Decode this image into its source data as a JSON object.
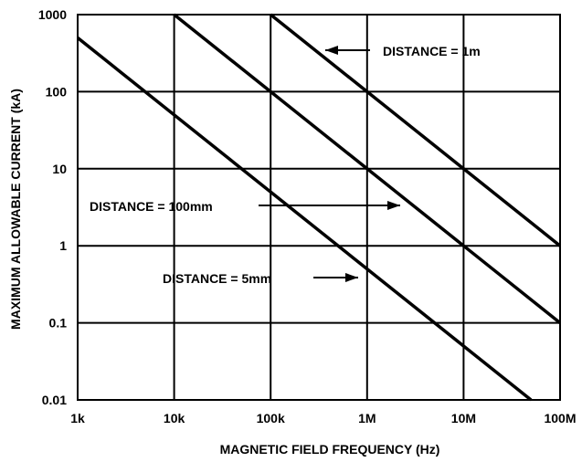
{
  "chart_data": {
    "type": "line",
    "title": "",
    "xlabel": "MAGNETIC FIELD FREQUENCY (Hz)",
    "ylabel": "MAXIMUM ALLOWABLE CURRENT (kA)",
    "xscale": "log",
    "yscale": "log",
    "xlim": [
      1000,
      100000000
    ],
    "ylim": [
      0.01,
      1000
    ],
    "grid": true,
    "x_ticks": [
      {
        "value": 1000,
        "label": "1k"
      },
      {
        "value": 10000,
        "label": "10k"
      },
      {
        "value": 100000,
        "label": "100k"
      },
      {
        "value": 1000000,
        "label": "1M"
      },
      {
        "value": 10000000,
        "label": "10M"
      },
      {
        "value": 100000000,
        "label": "100M"
      }
    ],
    "y_ticks": [
      {
        "value": 0.01,
        "label": "0.01"
      },
      {
        "value": 0.1,
        "label": "0.1"
      },
      {
        "value": 1,
        "label": "1"
      },
      {
        "value": 10,
        "label": "10"
      },
      {
        "value": 100,
        "label": "100"
      },
      {
        "value": 1000,
        "label": "1000"
      }
    ],
    "series": [
      {
        "name": "DISTANCE = 1m",
        "x": [
          100000,
          100000000
        ],
        "y": [
          1000,
          1
        ]
      },
      {
        "name": "DISTANCE = 100mm",
        "x": [
          10000,
          100000000
        ],
        "y": [
          1000,
          0.1
        ]
      },
      {
        "name": "DISTANCE = 5mm",
        "x": [
          1000,
          50000000
        ],
        "y": [
          500,
          0.01
        ]
      }
    ],
    "annotations": [
      {
        "text": "DISTANCE = 1m",
        "series": 0,
        "arrow": "left"
      },
      {
        "text": "DISTANCE = 100mm",
        "series": 1,
        "arrow": "right"
      },
      {
        "text": "DISTANCE = 5mm",
        "series": 2,
        "arrow": "right"
      }
    ]
  }
}
